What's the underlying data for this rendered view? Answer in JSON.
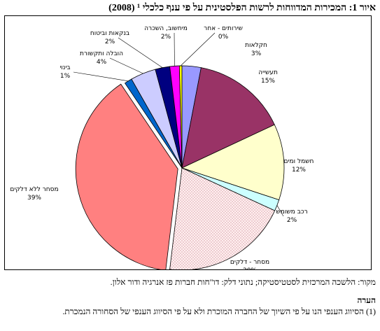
{
  "title": "איור 1: המכירות המדווחות לרשות הפלסטינית על פי ענף כלכלי ¹ (2008)",
  "source": "מקור: הלשכה המרכזית לסטטיסטיקה; נתוני דלק: דו\"חות חברות פז אנרגיה ודור אלון.",
  "note_heading": "הערה",
  "note_text": "(1) הסיווג הענפי הנו על פי השיוך של החברה המוכרת ולא על פי הסיווג הענפי של הסחורה הנמכרת.",
  "colors": {
    "chaklaot": "#9999ff",
    "taasiya": "#993366",
    "hashmal": "#ffffcc",
    "rechev": "#ccffff",
    "delek": "#fff0f0",
    "mischar": "#ff8080",
    "binui": "#0066cc",
    "hovala": "#ccccff",
    "bankaut": "#000080",
    "michshuv": "#ff00ff",
    "sherutim": "#ffff00",
    "outline": "#000000"
  },
  "chart_data": {
    "type": "pie",
    "start_angle_deg": 0,
    "direction": "clockwise",
    "slices": [
      {
        "key": "chaklaot",
        "name": "חקלאות",
        "pct_label": "3%",
        "value": 3.0
      },
      {
        "key": "taasiya",
        "name": "תעשייה",
        "pct_label": "15%",
        "value": 15.0
      },
      {
        "key": "hashmal",
        "name": "חשמל ומים",
        "pct_label": "12%",
        "value": 12.0
      },
      {
        "key": "rechev",
        "name": "רכב משומש",
        "pct_label": "2%",
        "value": 1.8
      },
      {
        "key": "delek",
        "name": "מסחר - דלקים",
        "pct_label": "20%",
        "value": 20.0
      },
      {
        "key": "mischar",
        "name": "מסחר ללא דלקים",
        "pct_label": "39%",
        "value": 38.6
      },
      {
        "key": "binui",
        "name": "בינוי",
        "pct_label": "1%",
        "value": 1.2
      },
      {
        "key": "hovala",
        "name": "הובלה ותקשורת",
        "pct_label": "4%",
        "value": 4.0
      },
      {
        "key": "bankaut",
        "name": "בנקאות וביטוח",
        "pct_label": "2%",
        "value": 2.3
      },
      {
        "key": "michshuv",
        "name": "מיחשוב, השכרה",
        "pct_label": "2%",
        "value": 1.5
      },
      {
        "key": "sherutim",
        "name": "שירותים - אחר",
        "pct_label": "0%",
        "value": 0.4
      }
    ]
  }
}
